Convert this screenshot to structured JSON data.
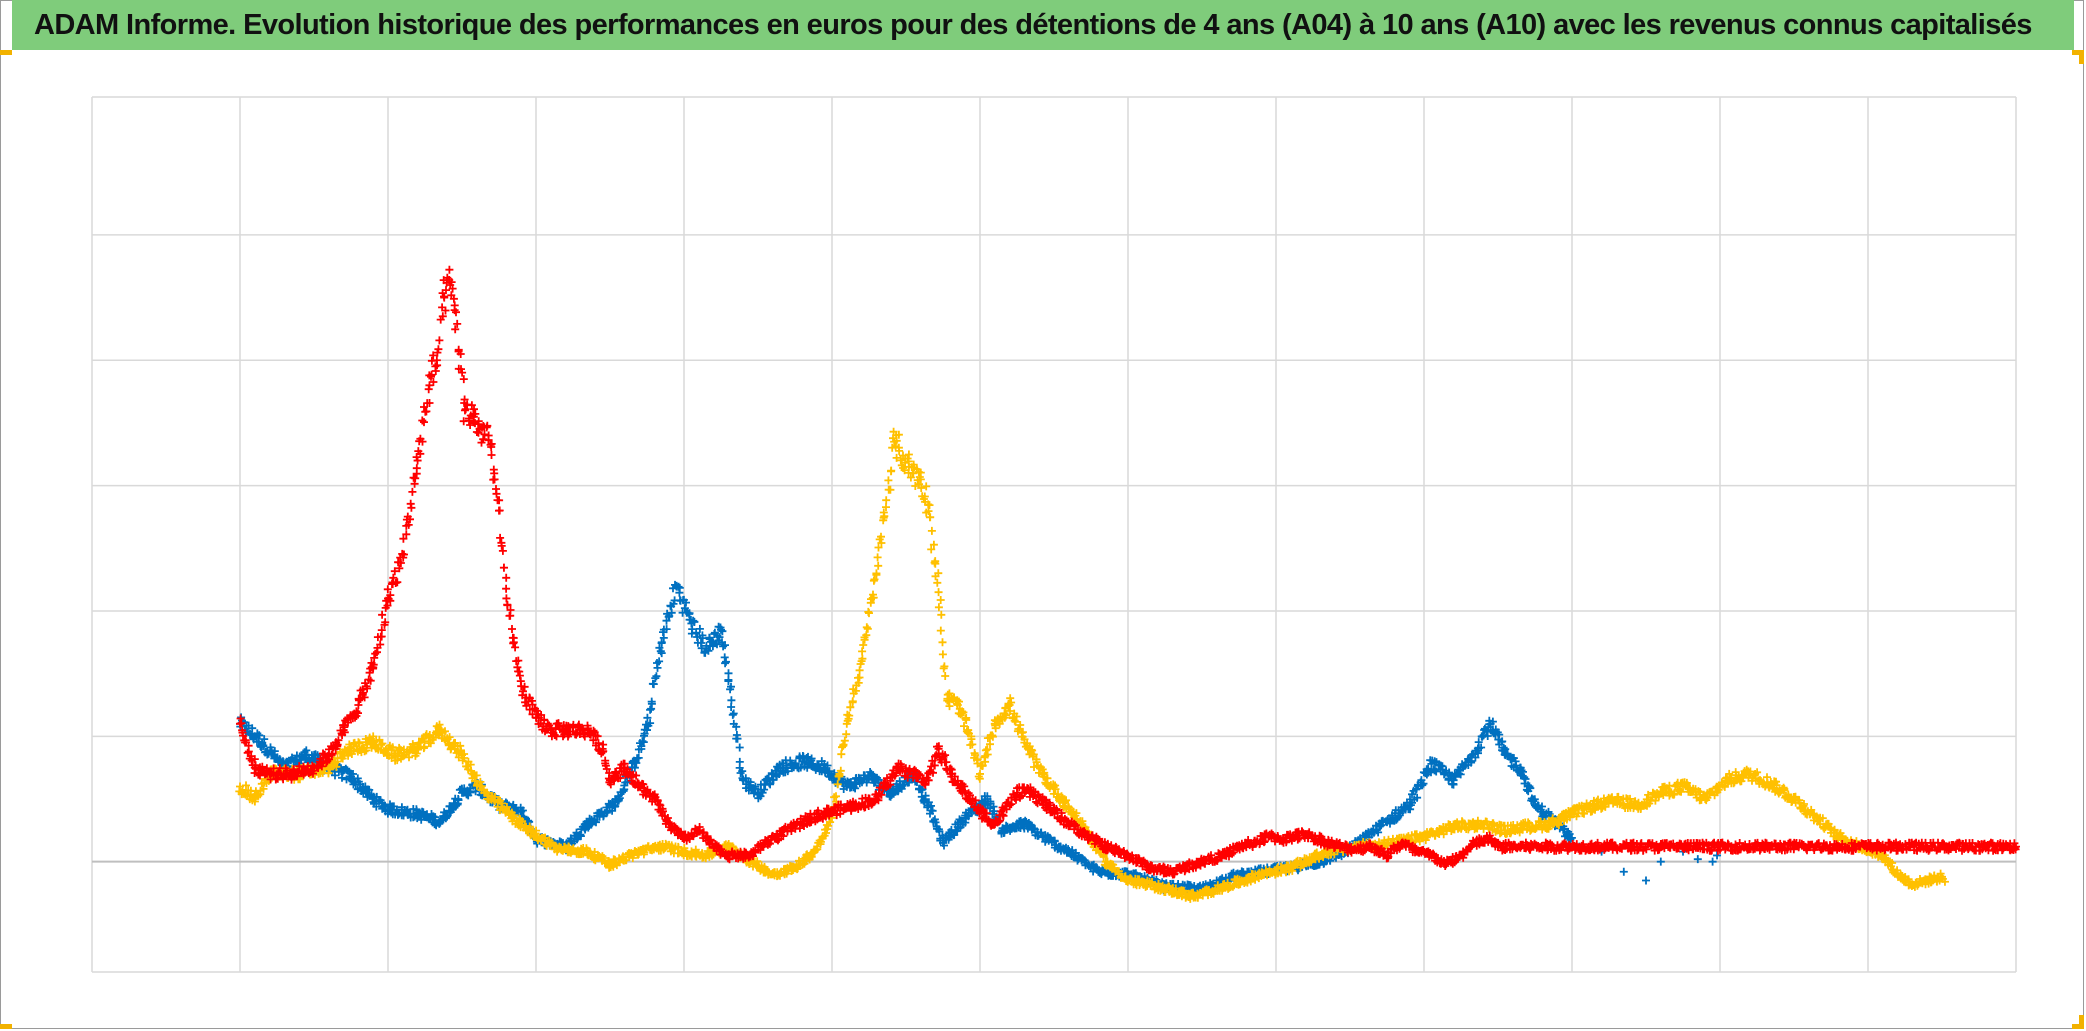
{
  "title": "ADAM Informe. Evolution historique des performances en euros pour des détentions de 4 ans (A04) à 10 ans (A10) avec les revenus connus capitalisés",
  "colors": {
    "title_bar": "#7fcc7b",
    "corner_marks": "#f2b200",
    "grid": "#d9d9d9",
    "baseline": "#bfbfbf"
  },
  "chart_data": {
    "type": "scatter",
    "marker": "plus",
    "x_axis": {
      "min": 0,
      "max": 13,
      "gridlines": 13,
      "tick_labels": []
    },
    "y_axis": {
      "min": -0.88,
      "max": 6.1,
      "gridlines": 6,
      "tick_labels": []
    },
    "grid": true,
    "legend": "none",
    "series": [
      {
        "color": "#0070c0",
        "range": [
          1.0,
          10.0
        ],
        "points": [
          [
            1.0,
            1.1
          ],
          [
            1.15,
            0.95
          ],
          [
            1.3,
            0.75
          ],
          [
            1.45,
            0.85
          ],
          [
            1.6,
            0.75
          ],
          [
            1.75,
            0.68
          ],
          [
            1.9,
            0.5
          ],
          [
            2.0,
            0.42
          ],
          [
            2.2,
            0.38
          ],
          [
            2.35,
            0.32
          ],
          [
            2.5,
            0.55
          ],
          [
            2.6,
            0.6
          ],
          [
            2.75,
            0.45
          ],
          [
            2.9,
            0.4
          ],
          [
            3.0,
            0.18
          ],
          [
            3.2,
            0.12
          ],
          [
            3.35,
            0.3
          ],
          [
            3.55,
            0.48
          ],
          [
            3.65,
            0.75
          ],
          [
            3.75,
            1.05
          ],
          [
            3.85,
            1.75
          ],
          [
            3.95,
            2.2
          ],
          [
            4.05,
            1.9
          ],
          [
            4.15,
            1.7
          ],
          [
            4.25,
            1.85
          ],
          [
            4.3,
            1.45
          ],
          [
            4.4,
            0.65
          ],
          [
            4.5,
            0.55
          ],
          [
            4.65,
            0.75
          ],
          [
            4.8,
            0.8
          ],
          [
            4.95,
            0.75
          ],
          [
            5.1,
            0.6
          ],
          [
            5.25,
            0.68
          ],
          [
            5.4,
            0.55
          ],
          [
            5.55,
            0.7
          ],
          [
            5.65,
            0.45
          ],
          [
            5.75,
            0.15
          ],
          [
            5.9,
            0.35
          ],
          [
            6.05,
            0.5
          ],
          [
            6.15,
            0.25
          ],
          [
            6.3,
            0.3
          ],
          [
            6.45,
            0.18
          ],
          [
            6.6,
            0.08
          ],
          [
            6.8,
            -0.08
          ],
          [
            7.0,
            -0.1
          ],
          [
            7.25,
            -0.2
          ],
          [
            7.5,
            -0.22
          ],
          [
            7.7,
            -0.12
          ],
          [
            7.9,
            -0.08
          ],
          [
            8.1,
            -0.05
          ],
          [
            8.3,
            0.0
          ],
          [
            8.5,
            0.1
          ],
          [
            8.7,
            0.28
          ],
          [
            8.9,
            0.45
          ],
          [
            9.05,
            0.78
          ],
          [
            9.2,
            0.65
          ],
          [
            9.3,
            0.8
          ],
          [
            9.45,
            1.1
          ],
          [
            9.55,
            0.85
          ],
          [
            9.65,
            0.75
          ],
          [
            9.75,
            0.45
          ],
          [
            9.9,
            0.3
          ],
          [
            10.05,
            0.12
          ],
          [
            10.2,
            0.08
          ],
          [
            10.35,
            -0.08
          ],
          [
            10.5,
            -0.15
          ],
          [
            10.6,
            0.0
          ],
          [
            10.75,
            0.08
          ],
          [
            10.85,
            0.02
          ],
          [
            10.95,
            0.0
          ],
          [
            10.98,
            0.05
          ]
        ]
      },
      {
        "color": "#ffc000",
        "range": [
          1.0,
          12.5
        ],
        "points": [
          [
            1.0,
            0.6
          ],
          [
            1.1,
            0.5
          ],
          [
            1.2,
            0.7
          ],
          [
            1.4,
            0.7
          ],
          [
            1.6,
            0.75
          ],
          [
            1.75,
            0.9
          ],
          [
            1.9,
            0.95
          ],
          [
            2.05,
            0.85
          ],
          [
            2.2,
            0.9
          ],
          [
            2.35,
            1.05
          ],
          [
            2.5,
            0.85
          ],
          [
            2.65,
            0.55
          ],
          [
            2.8,
            0.4
          ],
          [
            2.95,
            0.25
          ],
          [
            3.15,
            0.1
          ],
          [
            3.35,
            0.08
          ],
          [
            3.5,
            -0.02
          ],
          [
            3.7,
            0.08
          ],
          [
            3.85,
            0.12
          ],
          [
            4.0,
            0.08
          ],
          [
            4.15,
            0.05
          ],
          [
            4.3,
            0.12
          ],
          [
            4.45,
            0.0
          ],
          [
            4.6,
            -0.1
          ],
          [
            4.75,
            -0.05
          ],
          [
            4.9,
            0.1
          ],
          [
            5.0,
            0.35
          ],
          [
            5.05,
            0.7
          ],
          [
            5.1,
            1.1
          ],
          [
            5.2,
            1.6
          ],
          [
            5.3,
            2.3
          ],
          [
            5.42,
            3.35
          ],
          [
            5.52,
            3.15
          ],
          [
            5.6,
            3.05
          ],
          [
            5.65,
            2.85
          ],
          [
            5.72,
            2.15
          ],
          [
            5.78,
            1.3
          ],
          [
            5.85,
            1.25
          ],
          [
            5.92,
            1.05
          ],
          [
            6.0,
            0.7
          ],
          [
            6.1,
            1.1
          ],
          [
            6.2,
            1.25
          ],
          [
            6.3,
            0.95
          ],
          [
            6.42,
            0.7
          ],
          [
            6.55,
            0.5
          ],
          [
            6.7,
            0.28
          ],
          [
            6.85,
            0.0
          ],
          [
            7.0,
            -0.15
          ],
          [
            7.2,
            -0.2
          ],
          [
            7.45,
            -0.28
          ],
          [
            7.65,
            -0.2
          ],
          [
            7.9,
            -0.1
          ],
          [
            8.1,
            -0.05
          ],
          [
            8.35,
            0.08
          ],
          [
            8.55,
            0.12
          ],
          [
            8.8,
            0.15
          ],
          [
            9.0,
            0.2
          ],
          [
            9.2,
            0.28
          ],
          [
            9.4,
            0.3
          ],
          [
            9.55,
            0.25
          ],
          [
            9.7,
            0.28
          ],
          [
            9.85,
            0.3
          ],
          [
            10.0,
            0.38
          ],
          [
            10.15,
            0.45
          ],
          [
            10.3,
            0.48
          ],
          [
            10.45,
            0.45
          ],
          [
            10.6,
            0.55
          ],
          [
            10.75,
            0.6
          ],
          [
            10.9,
            0.5
          ],
          [
            11.05,
            0.65
          ],
          [
            11.2,
            0.7
          ],
          [
            11.35,
            0.62
          ],
          [
            11.5,
            0.5
          ],
          [
            11.65,
            0.35
          ],
          [
            11.8,
            0.2
          ],
          [
            11.95,
            0.12
          ],
          [
            12.1,
            0.05
          ],
          [
            12.2,
            -0.1
          ],
          [
            12.3,
            -0.18
          ],
          [
            12.4,
            -0.15
          ],
          [
            12.5,
            -0.12
          ],
          [
            12.52,
            -0.16
          ]
        ]
      },
      {
        "color": "#ff0000",
        "range": [
          1.0,
          13.0
        ],
        "points": [
          [
            1.0,
            1.1
          ],
          [
            1.1,
            0.75
          ],
          [
            1.2,
            0.7
          ],
          [
            1.35,
            0.7
          ],
          [
            1.5,
            0.75
          ],
          [
            1.6,
            0.85
          ],
          [
            1.7,
            1.05
          ],
          [
            1.8,
            1.25
          ],
          [
            1.9,
            1.55
          ],
          [
            2.0,
            2.1
          ],
          [
            2.1,
            2.45
          ],
          [
            2.2,
            3.2
          ],
          [
            2.28,
            3.8
          ],
          [
            2.33,
            4.0
          ],
          [
            2.38,
            4.5
          ],
          [
            2.42,
            4.6
          ],
          [
            2.45,
            4.4
          ],
          [
            2.52,
            3.6
          ],
          [
            2.58,
            3.55
          ],
          [
            2.62,
            3.45
          ],
          [
            2.68,
            3.4
          ],
          [
            2.72,
            3.05
          ],
          [
            2.75,
            2.8
          ],
          [
            2.8,
            2.1
          ],
          [
            2.85,
            1.75
          ],
          [
            2.9,
            1.4
          ],
          [
            3.0,
            1.15
          ],
          [
            3.1,
            1.05
          ],
          [
            3.2,
            1.05
          ],
          [
            3.35,
            1.05
          ],
          [
            3.45,
            0.9
          ],
          [
            3.5,
            0.65
          ],
          [
            3.6,
            0.75
          ],
          [
            3.7,
            0.6
          ],
          [
            3.8,
            0.5
          ],
          [
            3.9,
            0.3
          ],
          [
            4.0,
            0.18
          ],
          [
            4.1,
            0.25
          ],
          [
            4.2,
            0.12
          ],
          [
            4.3,
            0.05
          ],
          [
            4.45,
            0.05
          ],
          [
            4.55,
            0.15
          ],
          [
            4.7,
            0.25
          ],
          [
            4.85,
            0.35
          ],
          [
            5.0,
            0.4
          ],
          [
            5.15,
            0.45
          ],
          [
            5.3,
            0.5
          ],
          [
            5.45,
            0.75
          ],
          [
            5.55,
            0.7
          ],
          [
            5.65,
            0.65
          ],
          [
            5.72,
            0.9
          ],
          [
            5.8,
            0.7
          ],
          [
            5.9,
            0.55
          ],
          [
            6.0,
            0.4
          ],
          [
            6.1,
            0.3
          ],
          [
            6.25,
            0.55
          ],
          [
            6.35,
            0.55
          ],
          [
            6.45,
            0.45
          ],
          [
            6.55,
            0.35
          ],
          [
            6.7,
            0.22
          ],
          [
            6.85,
            0.12
          ],
          [
            7.0,
            0.05
          ],
          [
            7.15,
            -0.05
          ],
          [
            7.3,
            -0.08
          ],
          [
            7.5,
            0.0
          ],
          [
            7.65,
            0.05
          ],
          [
            7.75,
            0.12
          ],
          [
            7.85,
            0.15
          ],
          [
            7.95,
            0.2
          ],
          [
            8.05,
            0.18
          ],
          [
            8.2,
            0.22
          ],
          [
            8.35,
            0.15
          ],
          [
            8.5,
            0.1
          ],
          [
            8.65,
            0.12
          ],
          [
            8.75,
            0.05
          ],
          [
            8.85,
            0.15
          ],
          [
            8.95,
            0.08
          ],
          [
            9.05,
            0.05
          ],
          [
            9.15,
            -0.02
          ],
          [
            9.25,
            0.05
          ],
          [
            9.35,
            0.15
          ],
          [
            9.45,
            0.18
          ],
          [
            9.5,
            0.12
          ],
          [
            10.0,
            0.12
          ],
          [
            11.0,
            0.12
          ],
          [
            12.0,
            0.12
          ],
          [
            13.0,
            0.12
          ]
        ]
      }
    ]
  }
}
